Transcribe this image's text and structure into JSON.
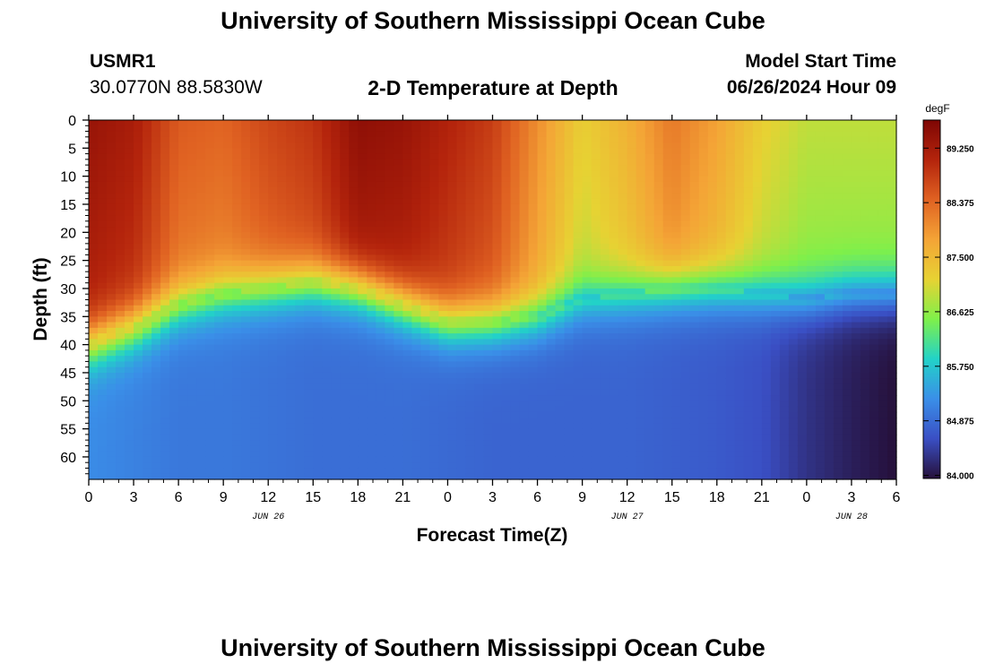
{
  "page": {
    "title_top": "University of Southern Mississippi Ocean Cube",
    "title_bottom": "University of Southern Mississippi Ocean Cube",
    "station": "USMR1",
    "location": "30.0770N  88.5830W",
    "subtitle": "2-D Temperature at Depth",
    "model_start_label": "Model Start Time",
    "model_start_value": "06/26/2024 Hour 09"
  },
  "chart_data": {
    "type": "heatmap",
    "title": "2-D Temperature at Depth",
    "xlabel": "Forecast Time(Z)",
    "ylabel": "Depth (ft)",
    "x_tick_labels": [
      "0",
      "3",
      "6",
      "9",
      "12",
      "15",
      "18",
      "21",
      "0",
      "3",
      "6",
      "9",
      "12",
      "15",
      "18",
      "21",
      "0",
      "3",
      "6"
    ],
    "x_dates": [
      {
        "label": "JUN 26",
        "tick_index": 4
      },
      {
        "label": "JUN 27",
        "tick_index": 12
      },
      {
        "label": "JUN 28",
        "tick_index": 17
      }
    ],
    "xlim": [
      0,
      54
    ],
    "y_tick_labels": [
      "0",
      "5",
      "10",
      "15",
      "20",
      "25",
      "30",
      "35",
      "40",
      "45",
      "50",
      "55",
      "60"
    ],
    "y_ticks": [
      0,
      5,
      10,
      15,
      20,
      25,
      30,
      35,
      40,
      45,
      50,
      55,
      60
    ],
    "ylim": [
      0,
      64
    ],
    "y_inverted": true,
    "colorbar": {
      "unit": "degF",
      "tick_labels": [
        "89.250",
        "88.375",
        "87.500",
        "86.625",
        "85.750",
        "84.875",
        "84.000"
      ],
      "ticks": [
        89.25,
        88.375,
        87.5,
        86.625,
        85.75,
        84.875,
        84.0
      ],
      "range": [
        83.95,
        89.7
      ],
      "stops": [
        "#26103a",
        "#3a4fc4",
        "#3a8fe8",
        "#22d2c8",
        "#7ff04a",
        "#e7d233",
        "#f4a436",
        "#e06222",
        "#b4240c",
        "#7e0604"
      ]
    },
    "series": [
      {
        "x": [
          0,
          3,
          6,
          9,
          12,
          15,
          18,
          21,
          24,
          27,
          30,
          33,
          36,
          39,
          42,
          45,
          48,
          51,
          54
        ],
        "thermocline_depth": [
          40,
          37,
          33,
          31,
          30,
          29,
          30,
          33,
          36,
          36,
          35,
          32,
          31,
          30,
          30,
          31,
          32,
          31,
          31
        ]
      },
      {
        "x": [
          0,
          3,
          6,
          9,
          12,
          15,
          18,
          21,
          24,
          27,
          30,
          33,
          36,
          39,
          42,
          45,
          48,
          51,
          54
        ],
        "surface_temp": [
          89.4,
          89.2,
          88.5,
          88.4,
          88.7,
          88.9,
          89.5,
          89.4,
          89.1,
          88.8,
          88.0,
          87.2,
          87.6,
          88.2,
          87.8,
          87.2,
          86.9,
          86.9,
          86.9
        ]
      },
      {
        "x": [
          0,
          3,
          6,
          9,
          12,
          15,
          18,
          21,
          24,
          27,
          30,
          33,
          36,
          39,
          42,
          45,
          48,
          51,
          54
        ],
        "bottom_temp": [
          85.2,
          85.1,
          85.0,
          85.0,
          84.95,
          84.9,
          84.9,
          84.9,
          84.85,
          84.8,
          84.8,
          84.8,
          84.8,
          84.75,
          84.7,
          84.6,
          84.3,
          84.1,
          83.95
        ]
      }
    ]
  }
}
